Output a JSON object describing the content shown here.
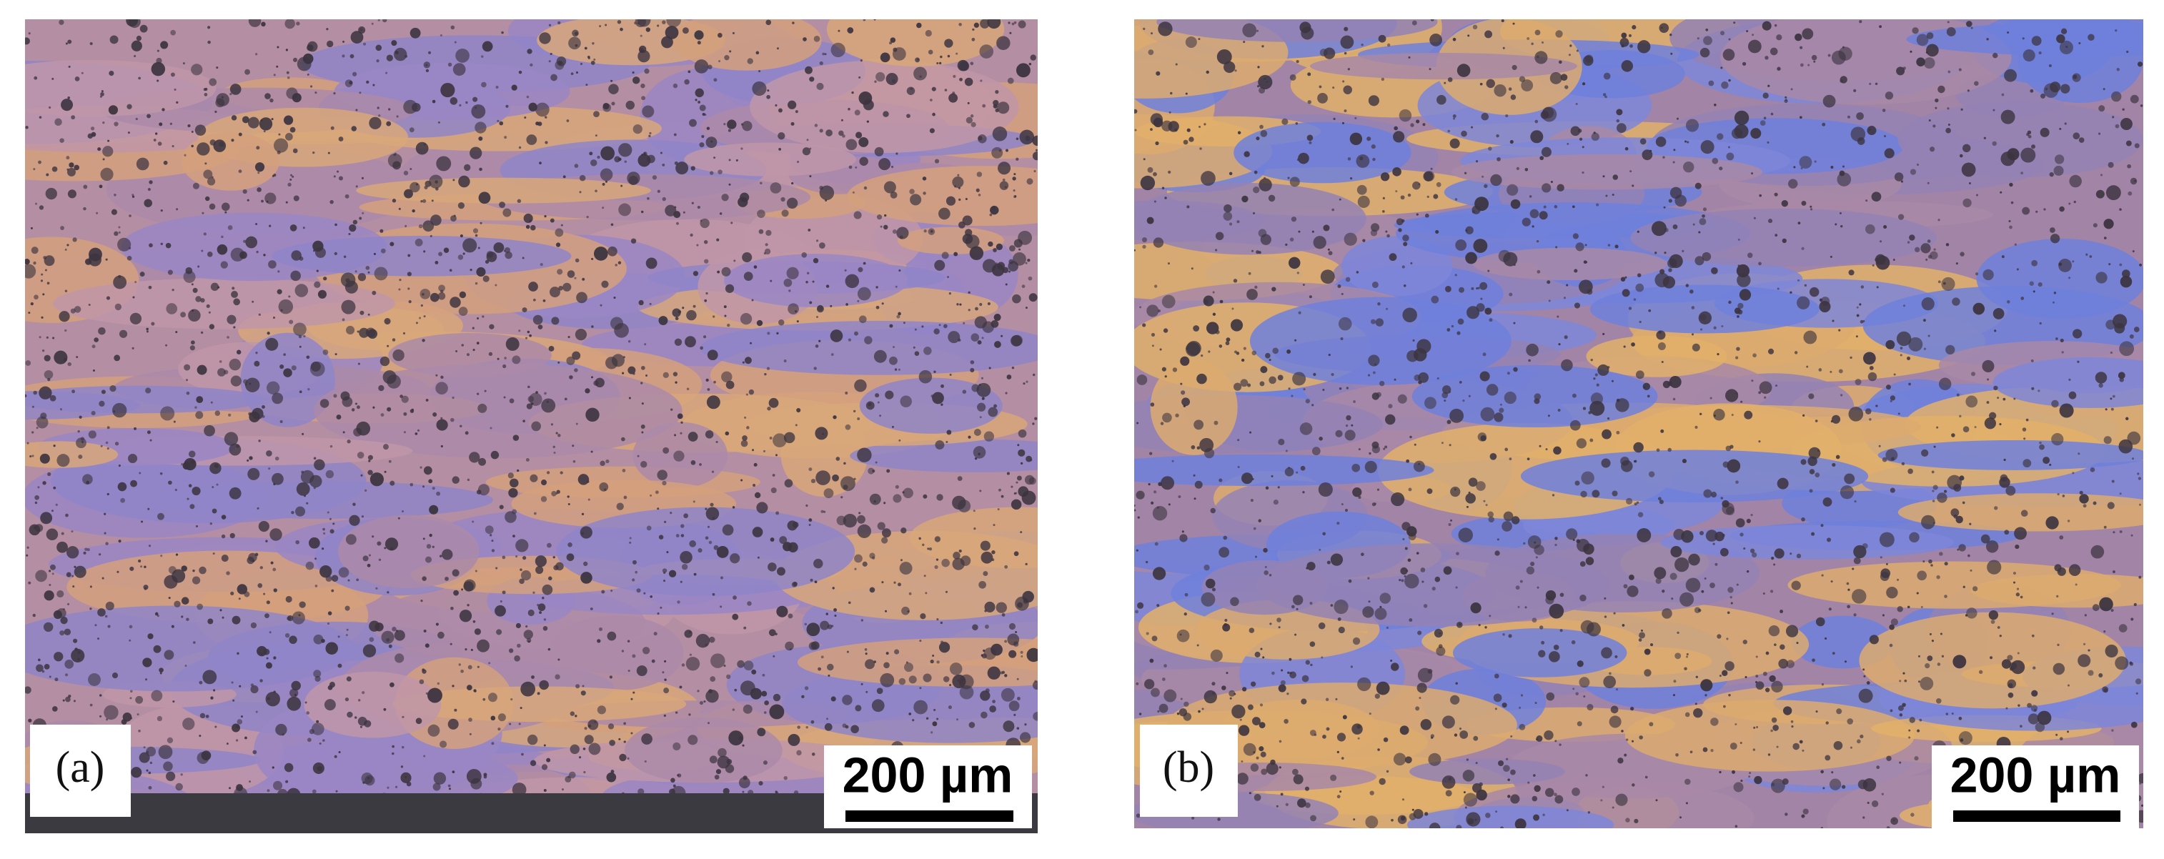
{
  "panels": [
    {
      "label": "(a)",
      "scale_bar": "200 µm"
    },
    {
      "label": "(b)",
      "scale_bar": "200 µm"
    }
  ]
}
